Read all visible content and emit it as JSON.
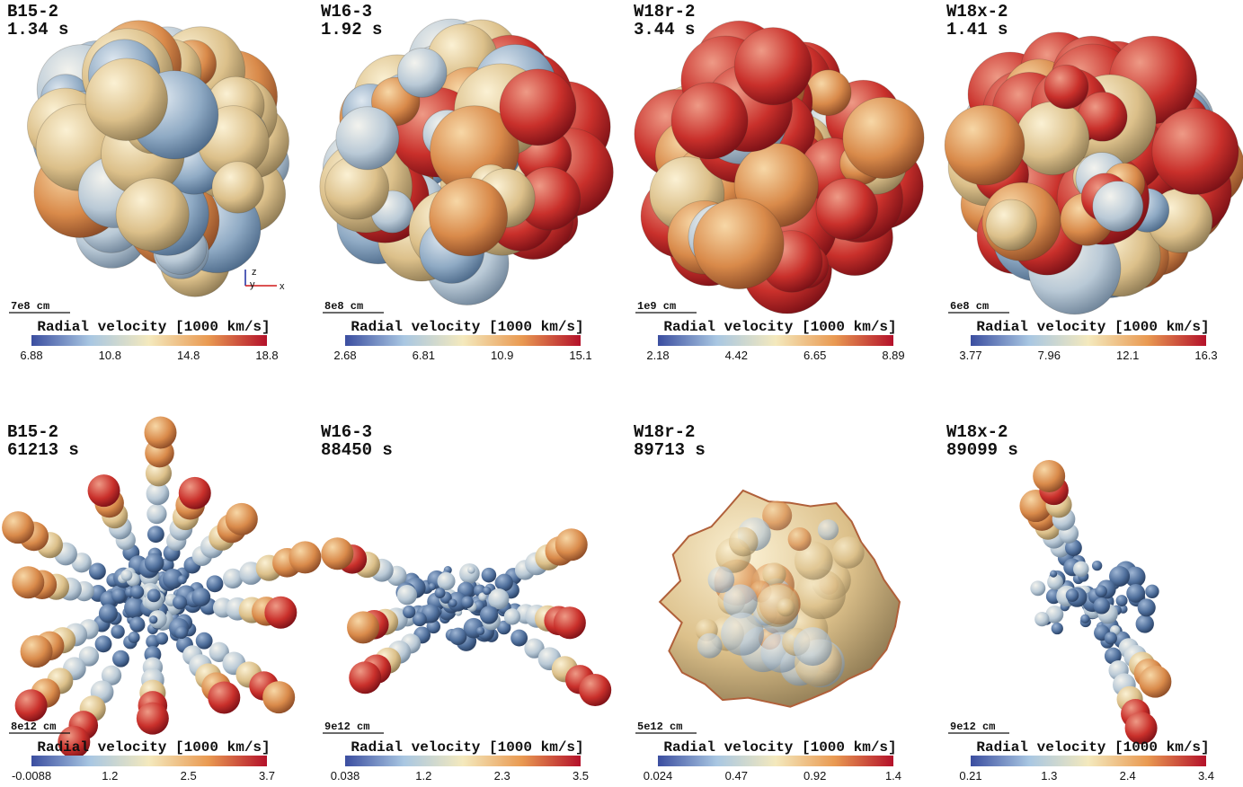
{
  "panels": [
    {
      "model": "B15-2",
      "time": "1.34 s",
      "scale": "7e8 cm",
      "colorbar_label": "Radial velocity [1000 km/s]",
      "ticks": [
        "6.88",
        "10.8",
        "14.8",
        "18.8"
      ]
    },
    {
      "model": "W16-3",
      "time": "1.92 s",
      "scale": "8e8 cm",
      "colorbar_label": "Radial velocity [1000 km/s]",
      "ticks": [
        "2.68",
        "6.81",
        "10.9",
        "15.1"
      ]
    },
    {
      "model": "W18r-2",
      "time": "3.44 s",
      "scale": "1e9 cm",
      "colorbar_label": "Radial velocity [1000 km/s]",
      "ticks": [
        "2.18",
        "4.42",
        "6.65",
        "8.89"
      ]
    },
    {
      "model": "W18x-2",
      "time": "1.41 s",
      "scale": "6e8 cm",
      "colorbar_label": "Radial velocity [1000 km/s]",
      "ticks": [
        "3.77",
        "7.96",
        "12.1",
        "16.3"
      ]
    },
    {
      "model": "B15-2",
      "time": "61213 s",
      "scale": "8e12 cm",
      "colorbar_label": "Radial velocity [1000 km/s]",
      "ticks": [
        "-0.0088",
        "1.2",
        "2.5",
        "3.7"
      ]
    },
    {
      "model": "W16-3",
      "time": "88450 s",
      "scale": "9e12 cm",
      "colorbar_label": "Radial velocity [1000 km/s]",
      "ticks": [
        "0.038",
        "1.2",
        "2.3",
        "3.5"
      ]
    },
    {
      "model": "W18r-2",
      "time": "89713 s",
      "scale": "5e12 cm",
      "colorbar_label": "Radial velocity [1000 km/s]",
      "ticks": [
        "0.024",
        "0.47",
        "0.92",
        "1.4"
      ]
    },
    {
      "model": "W18x-2",
      "time": "89099 s",
      "scale": "9e12 cm",
      "colorbar_label": "Radial velocity [1000 km/s]",
      "ticks": [
        "0.21",
        "1.3",
        "2.4",
        "3.4"
      ]
    }
  ],
  "axes_labels": [
    "z",
    "y",
    "x"
  ]
}
